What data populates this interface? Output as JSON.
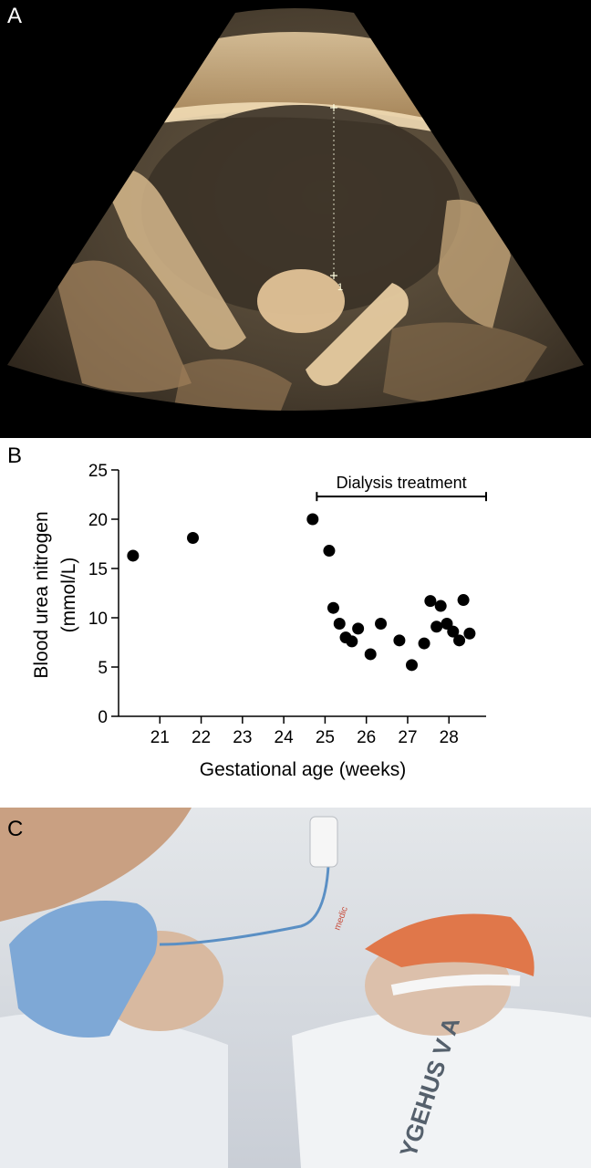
{
  "panels": {
    "a": {
      "label": "A"
    },
    "b": {
      "label": "B"
    },
    "c": {
      "label": "C"
    }
  },
  "ultrasound": {
    "marker_label": "1"
  },
  "photo": {
    "hospital_text": "YGEHUS V A",
    "tag_text": "medic"
  },
  "colors": {
    "ultrasound_tint": "#c9a06a",
    "knit_cap": "#7ea8d6",
    "orange_cap": "#e0774a",
    "points": "#000000"
  },
  "chart_data": {
    "type": "scatter",
    "title": "",
    "xlabel": "Gestational age (weeks)",
    "ylabel": "Blood urea nitrogen (mmol/L)",
    "ylabel_lines": [
      "Blood urea nitrogen",
      "(mmol/L)"
    ],
    "xlim": [
      20,
      28.9
    ],
    "ylim": [
      0,
      25
    ],
    "xticks": [
      21,
      22,
      23,
      24,
      25,
      26,
      27,
      28
    ],
    "yticks": [
      0,
      5,
      10,
      15,
      20,
      25
    ],
    "grid": false,
    "legend": "none",
    "annotation": {
      "text": "Dialysis treatment",
      "x_start": 24.8,
      "x_end": 28.9,
      "y": 22.3
    },
    "points": [
      {
        "x": 20.35,
        "y": 16.3
      },
      {
        "x": 21.8,
        "y": 18.1
      },
      {
        "x": 24.7,
        "y": 20.0
      },
      {
        "x": 25.1,
        "y": 16.8
      },
      {
        "x": 25.2,
        "y": 11.0
      },
      {
        "x": 25.35,
        "y": 9.4
      },
      {
        "x": 25.5,
        "y": 8.0
      },
      {
        "x": 25.65,
        "y": 7.6
      },
      {
        "x": 25.8,
        "y": 8.9
      },
      {
        "x": 26.1,
        "y": 6.3
      },
      {
        "x": 26.35,
        "y": 9.4
      },
      {
        "x": 26.8,
        "y": 7.7
      },
      {
        "x": 27.1,
        "y": 5.2
      },
      {
        "x": 27.4,
        "y": 7.4
      },
      {
        "x": 27.55,
        "y": 11.7
      },
      {
        "x": 27.7,
        "y": 9.1
      },
      {
        "x": 27.8,
        "y": 11.2
      },
      {
        "x": 27.95,
        "y": 9.4
      },
      {
        "x": 28.1,
        "y": 8.6
      },
      {
        "x": 28.25,
        "y": 7.7
      },
      {
        "x": 28.35,
        "y": 11.8
      },
      {
        "x": 28.5,
        "y": 8.4
      }
    ]
  }
}
